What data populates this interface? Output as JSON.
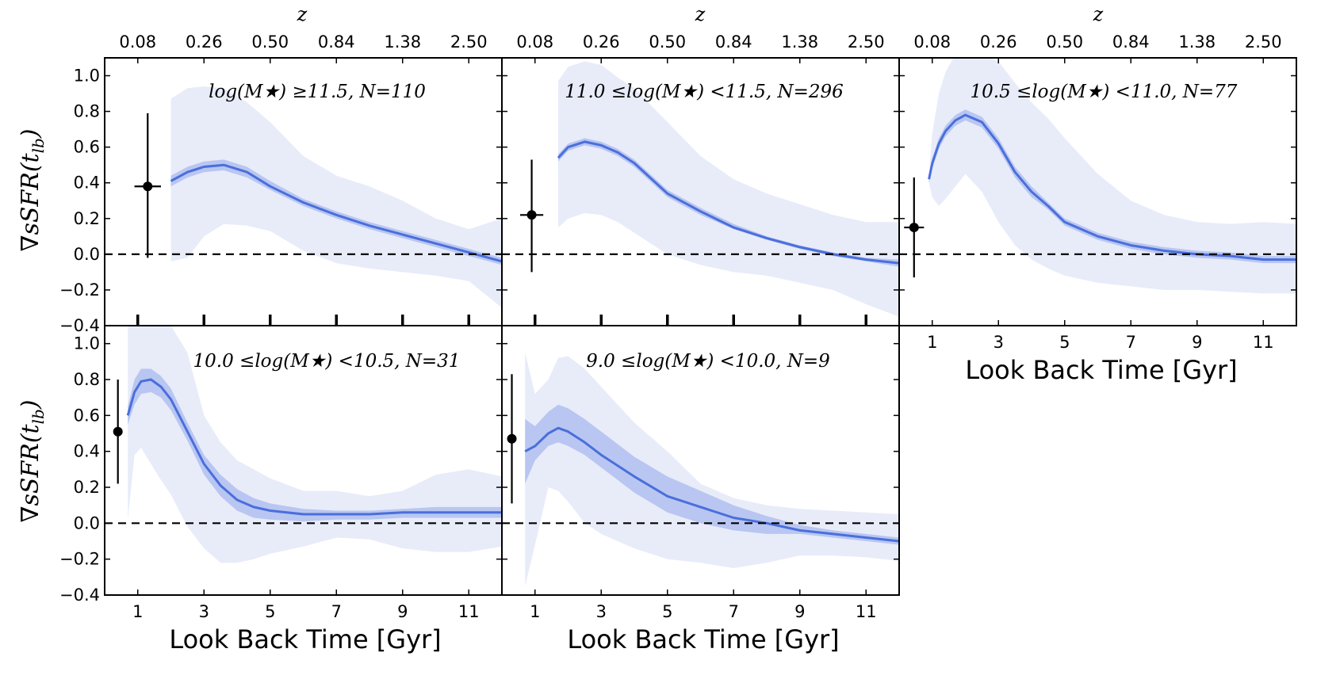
{
  "figure": {
    "top_axis_label": "z",
    "y_axis_label": "∇sSFR(t",
    "y_axis_label_sub": "lb",
    "y_axis_label_close": ")",
    "x_axis_label": "Look Back Time [Gyr]"
  },
  "chart_data": [
    {
      "type": "line",
      "title": "log(M★) ≥11.5, N=110",
      "xlabel": "",
      "ylabel": "∇sSFR(tlb)",
      "xlim": [
        0,
        12
      ],
      "ylim": [
        -0.4,
        1.1
      ],
      "x_ticks": [
        1,
        3,
        5,
        7,
        9,
        11
      ],
      "x_tick_labels_shown": false,
      "y_ticks": [
        -0.4,
        -0.2,
        0.0,
        0.2,
        0.4,
        0.6,
        0.8,
        1.0
      ],
      "top_ticks": [
        "0.08",
        "0.26",
        "0.50",
        "0.84",
        "1.38",
        "2.50"
      ],
      "reference_line": 0.0,
      "point": {
        "x": 1.3,
        "y": 0.38,
        "xerr": 0.4,
        "yerr_low": 0.4,
        "yerr_high": 0.41
      },
      "series": [
        {
          "name": "median",
          "x": [
            2.0,
            2.5,
            3.0,
            3.6,
            4.3,
            5.0,
            6.0,
            7.0,
            8.0,
            9.0,
            10.0,
            11.0,
            12.0
          ],
          "y": [
            0.41,
            0.46,
            0.49,
            0.5,
            0.46,
            0.38,
            0.29,
            0.22,
            0.16,
            0.11,
            0.06,
            0.01,
            -0.04
          ],
          "inner_low": [
            0.38,
            0.43,
            0.46,
            0.47,
            0.43,
            0.36,
            0.27,
            0.2,
            0.14,
            0.09,
            0.04,
            -0.01,
            -0.06
          ],
          "inner_high": [
            0.44,
            0.49,
            0.52,
            0.53,
            0.49,
            0.41,
            0.31,
            0.24,
            0.18,
            0.13,
            0.08,
            0.03,
            -0.02
          ],
          "outer_low": [
            -0.04,
            -0.02,
            0.1,
            0.17,
            0.16,
            0.13,
            0.02,
            -0.05,
            -0.08,
            -0.1,
            -0.12,
            -0.15,
            -0.3
          ],
          "outer_high": [
            0.87,
            0.93,
            0.94,
            0.93,
            0.85,
            0.74,
            0.55,
            0.44,
            0.38,
            0.3,
            0.2,
            0.14,
            0.2
          ]
        }
      ]
    },
    {
      "type": "line",
      "title": "11.0 ≤log(M★) <11.5, N=296",
      "xlabel": "",
      "ylabel": "",
      "xlim": [
        0,
        12
      ],
      "ylim": [
        -0.4,
        1.1
      ],
      "x_ticks": [
        1,
        3,
        5,
        7,
        9,
        11
      ],
      "x_tick_labels_shown": false,
      "y_ticks": [
        -0.4,
        -0.2,
        0.0,
        0.2,
        0.4,
        0.6,
        0.8,
        1.0
      ],
      "top_ticks": [
        "0.08",
        "0.26",
        "0.50",
        "0.84",
        "1.38",
        "2.50"
      ],
      "reference_line": 0.0,
      "point": {
        "x": 0.9,
        "y": 0.22,
        "xerr": 0.35,
        "yerr_low": 0.32,
        "yerr_high": 0.31
      },
      "series": [
        {
          "name": "median",
          "x": [
            1.7,
            2.0,
            2.5,
            3.0,
            3.5,
            4.0,
            5.0,
            6.0,
            7.0,
            8.0,
            9.0,
            10.0,
            11.0,
            12.0
          ],
          "y": [
            0.54,
            0.6,
            0.63,
            0.61,
            0.57,
            0.51,
            0.34,
            0.24,
            0.15,
            0.09,
            0.04,
            0.0,
            -0.03,
            -0.05
          ],
          "inner_low": [
            0.52,
            0.58,
            0.61,
            0.59,
            0.55,
            0.49,
            0.32,
            0.22,
            0.14,
            0.08,
            0.03,
            -0.01,
            -0.04,
            -0.07
          ],
          "inner_high": [
            0.56,
            0.62,
            0.65,
            0.63,
            0.59,
            0.53,
            0.36,
            0.26,
            0.17,
            0.1,
            0.05,
            0.01,
            -0.02,
            -0.03
          ],
          "outer_low": [
            0.15,
            0.2,
            0.23,
            0.22,
            0.18,
            0.12,
            0.0,
            -0.06,
            -0.1,
            -0.12,
            -0.16,
            -0.2,
            -0.28,
            -0.35
          ],
          "outer_high": [
            0.97,
            1.05,
            1.08,
            1.06,
            0.99,
            0.93,
            0.74,
            0.55,
            0.42,
            0.34,
            0.28,
            0.22,
            0.18,
            0.18
          ]
        }
      ]
    },
    {
      "type": "line",
      "title": "10.5 ≤log(M★) <11.0, N=77",
      "xlabel": "Look Back Time [Gyr]",
      "ylabel": "",
      "xlim": [
        0,
        12
      ],
      "ylim": [
        -0.4,
        1.1
      ],
      "x_ticks": [
        1,
        3,
        5,
        7,
        9,
        11
      ],
      "x_tick_labels_shown": true,
      "y_ticks": [
        -0.4,
        -0.2,
        0.0,
        0.2,
        0.4,
        0.6,
        0.8,
        1.0
      ],
      "top_ticks": [
        "0.08",
        "0.26",
        "0.50",
        "0.84",
        "1.38",
        "2.50"
      ],
      "reference_line": 0.0,
      "point": {
        "x": 0.45,
        "y": 0.15,
        "xerr": 0.3,
        "yerr_low": 0.28,
        "yerr_high": 0.28
      },
      "series": [
        {
          "name": "median",
          "x": [
            0.9,
            1.0,
            1.2,
            1.4,
            1.7,
            2.0,
            2.5,
            3.0,
            3.5,
            4.0,
            4.5,
            5.0,
            6.0,
            7.0,
            8.0,
            9.0,
            10.0,
            11.0,
            12.0
          ],
          "y": [
            0.42,
            0.51,
            0.62,
            0.69,
            0.75,
            0.78,
            0.74,
            0.62,
            0.46,
            0.35,
            0.27,
            0.18,
            0.1,
            0.05,
            0.02,
            0.0,
            -0.01,
            -0.03,
            -0.03
          ],
          "inner_low": [
            0.4,
            0.48,
            0.59,
            0.66,
            0.72,
            0.75,
            0.71,
            0.59,
            0.43,
            0.32,
            0.25,
            0.16,
            0.08,
            0.03,
            0.0,
            -0.02,
            -0.03,
            -0.05,
            -0.05
          ],
          "inner_high": [
            0.44,
            0.54,
            0.65,
            0.72,
            0.78,
            0.81,
            0.77,
            0.65,
            0.49,
            0.38,
            0.29,
            0.2,
            0.12,
            0.07,
            0.04,
            0.02,
            0.01,
            -0.01,
            -0.01
          ],
          "outer_low": [
            0.4,
            0.32,
            0.27,
            0.31,
            0.38,
            0.45,
            0.35,
            0.18,
            0.05,
            -0.03,
            -0.08,
            -0.12,
            -0.16,
            -0.18,
            -0.2,
            -0.2,
            -0.21,
            -0.22,
            -0.22
          ],
          "outer_high": [
            0.45,
            0.68,
            0.9,
            1.02,
            1.12,
            1.15,
            1.12,
            1.08,
            0.96,
            0.85,
            0.76,
            0.65,
            0.45,
            0.3,
            0.22,
            0.18,
            0.17,
            0.18,
            0.17
          ]
        }
      ]
    },
    {
      "type": "line",
      "title": "10.0 ≤log(M★) <10.5, N=31",
      "xlabel": "Look Back Time [Gyr]",
      "ylabel": "∇sSFR(tlb)",
      "xlim": [
        0,
        12
      ],
      "ylim": [
        -0.4,
        1.1
      ],
      "x_ticks": [
        1,
        3,
        5,
        7,
        9,
        11
      ],
      "x_tick_labels_shown": true,
      "y_ticks": [
        -0.4,
        -0.2,
        0.0,
        0.2,
        0.4,
        0.6,
        0.8,
        1.0
      ],
      "top_ticks": [],
      "reference_line": 0.0,
      "point": {
        "x": 0.4,
        "y": 0.51,
        "xerr": 0.12,
        "yerr_low": 0.29,
        "yerr_high": 0.29
      },
      "series": [
        {
          "name": "median",
          "x": [
            0.7,
            0.9,
            1.1,
            1.4,
            1.7,
            2.0,
            2.5,
            3.0,
            3.5,
            4.0,
            4.5,
            5.0,
            6.0,
            7.0,
            8.0,
            9.0,
            10.0,
            11.0,
            12.0
          ],
          "y": [
            0.6,
            0.73,
            0.79,
            0.8,
            0.76,
            0.69,
            0.51,
            0.33,
            0.21,
            0.13,
            0.09,
            0.07,
            0.05,
            0.05,
            0.05,
            0.06,
            0.06,
            0.06,
            0.06
          ],
          "inner_low": [
            0.55,
            0.66,
            0.72,
            0.73,
            0.7,
            0.63,
            0.46,
            0.27,
            0.15,
            0.07,
            0.03,
            0.02,
            0.01,
            0.02,
            0.02,
            0.03,
            0.03,
            0.03,
            0.03
          ],
          "inner_high": [
            0.65,
            0.8,
            0.86,
            0.86,
            0.82,
            0.75,
            0.56,
            0.38,
            0.27,
            0.19,
            0.14,
            0.11,
            0.08,
            0.07,
            0.07,
            0.08,
            0.09,
            0.09,
            0.09
          ],
          "outer_low": [
            0.02,
            0.38,
            0.42,
            0.33,
            0.24,
            0.16,
            -0.02,
            -0.14,
            -0.22,
            -0.22,
            -0.2,
            -0.17,
            -0.13,
            -0.08,
            -0.09,
            -0.14,
            -0.16,
            -0.16,
            -0.13
          ],
          "outer_high": [
            1.1,
            1.1,
            1.1,
            1.1,
            1.1,
            1.1,
            0.95,
            0.6,
            0.45,
            0.35,
            0.3,
            0.25,
            0.18,
            0.18,
            0.15,
            0.18,
            0.27,
            0.3,
            0.26
          ]
        }
      ]
    },
    {
      "type": "line",
      "title": "9.0 ≤log(M★) <10.0, N=9",
      "xlabel": "Look Back Time [Gyr]",
      "ylabel": "",
      "xlim": [
        0,
        12
      ],
      "ylim": [
        -0.4,
        1.1
      ],
      "x_ticks": [
        1,
        3,
        5,
        7,
        9,
        11
      ],
      "x_tick_labels_shown": true,
      "y_ticks": [
        -0.4,
        -0.2,
        0.0,
        0.2,
        0.4,
        0.6,
        0.8,
        1.0
      ],
      "top_ticks": [],
      "reference_line": 0.0,
      "point": {
        "x": 0.3,
        "y": 0.47,
        "xerr": 0.08,
        "yerr_low": 0.36,
        "yerr_high": 0.36
      },
      "series": [
        {
          "name": "median",
          "x": [
            0.7,
            1.0,
            1.4,
            1.7,
            2.0,
            2.5,
            3.0,
            4.0,
            5.0,
            6.0,
            7.0,
            8.0,
            9.0,
            10.0,
            11.0,
            12.0
          ],
          "y": [
            0.4,
            0.43,
            0.5,
            0.53,
            0.51,
            0.45,
            0.38,
            0.26,
            0.15,
            0.09,
            0.03,
            0.0,
            -0.04,
            -0.06,
            -0.08,
            -0.1
          ],
          "inner_low": [
            0.22,
            0.35,
            0.43,
            0.45,
            0.43,
            0.38,
            0.31,
            0.17,
            0.06,
            0.0,
            -0.04,
            -0.06,
            -0.06,
            -0.08,
            -0.1,
            -0.12
          ],
          "inner_high": [
            0.58,
            0.54,
            0.62,
            0.66,
            0.64,
            0.58,
            0.51,
            0.37,
            0.26,
            0.18,
            0.1,
            0.04,
            -0.01,
            -0.04,
            -0.06,
            -0.08
          ],
          "outer_low": [
            -0.35,
            -0.12,
            0.2,
            0.18,
            0.12,
            0.0,
            -0.06,
            -0.14,
            -0.2,
            -0.22,
            -0.25,
            -0.22,
            -0.18,
            -0.18,
            -0.19,
            -0.21
          ],
          "outer_high": [
            0.95,
            0.72,
            0.8,
            0.92,
            0.93,
            0.86,
            0.76,
            0.56,
            0.4,
            0.22,
            0.14,
            0.1,
            0.08,
            0.07,
            0.06,
            0.05
          ]
        }
      ]
    }
  ],
  "colors": {
    "line": "#4a6fdc",
    "inner_band": "#aab9ee",
    "outer_band": "#e8ecf9",
    "axes": "#000000"
  }
}
